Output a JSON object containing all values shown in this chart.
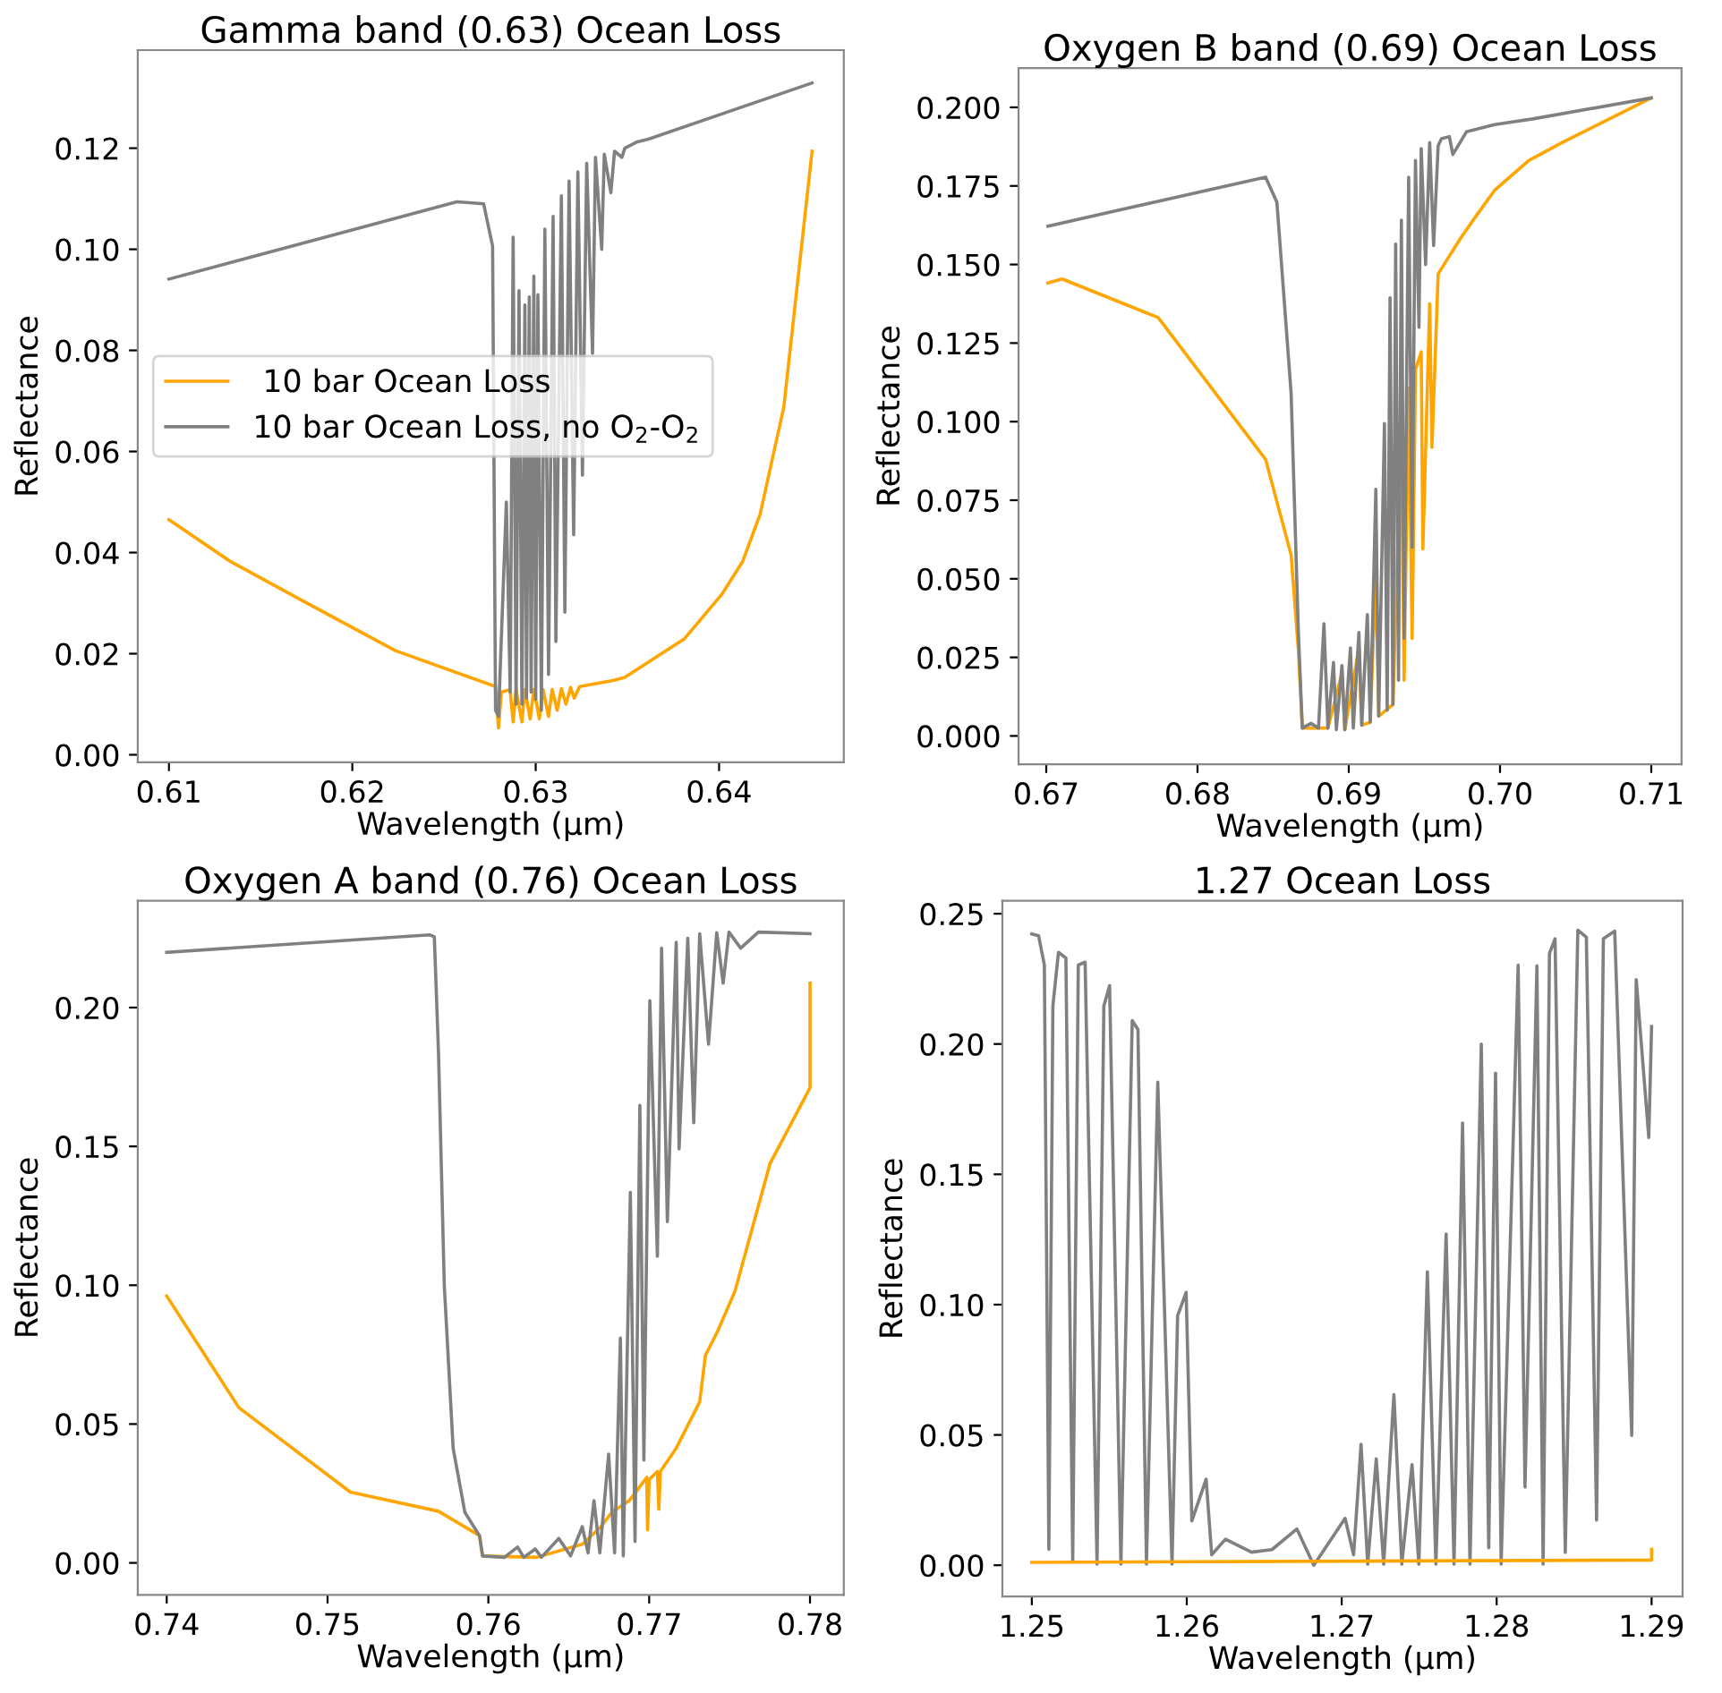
{
  "chart_data": [
    {
      "type": "line",
      "title": "Gamma band (0.63) Ocean Loss",
      "xlabel": "Wavelength (μm)",
      "ylabel": "Reflectance",
      "legend": "center left",
      "xlim": [
        0.6083,
        0.6468
      ],
      "ylim": [
        -0.0015,
        0.1394
      ],
      "xticks": [
        0.61,
        0.62,
        0.63,
        0.64
      ],
      "yticks": [
        {
          "value": 0,
          "label": "0.00"
        },
        {
          "value": 0.02,
          "label": "0.02"
        },
        {
          "value": 0.04,
          "label": "0.04"
        },
        {
          "value": 0.06,
          "label": "0.06"
        },
        {
          "value": 0.08,
          "label": "0.08"
        },
        {
          "value": 0.1,
          "label": "0.10"
        },
        {
          "value": 0.12,
          "label": "0.12"
        }
      ],
      "series": [
        {
          "name": " 10 bar Ocean Loss",
          "color": "#ffa500",
          "x": [
            0.61,
            0.61337,
            0.61722,
            0.62235,
            0.62781,
            0.62797,
            0.62813,
            0.6286,
            0.62877,
            0.62893,
            0.62925,
            0.62941,
            0.6297,
            0.6299,
            0.6302,
            0.6304,
            0.6307,
            0.6309,
            0.63117,
            0.6314,
            0.63165,
            0.6319,
            0.6321,
            0.6324,
            0.63422,
            0.63486,
            0.6381,
            0.64016,
            0.64128,
            0.64224,
            0.64353,
            0.64507
          ],
          "values": [
            0.0465,
            0.0382,
            0.0306,
            0.0206,
            0.0135,
            0.0053,
            0.0124,
            0.0129,
            0.0065,
            0.0129,
            0.0065,
            0.0129,
            0.0071,
            0.0129,
            0.0071,
            0.0129,
            0.0076,
            0.0129,
            0.0088,
            0.0131,
            0.01,
            0.0133,
            0.0112,
            0.0135,
            0.0147,
            0.0153,
            0.0229,
            0.0318,
            0.0382,
            0.0476,
            0.0688,
            0.1194
          ]
        },
        {
          "name": "10 bar Ocean Loss, no O$_{2}$-O$_{2}$",
          "color": "#808080",
          "x": [
            0.61,
            0.62572,
            0.62716,
            0.62765,
            0.62781,
            0.62797,
            0.6284,
            0.62861,
            0.62877,
            0.62893,
            0.62909,
            0.62925,
            0.62941,
            0.6295,
            0.62965,
            0.62975,
            0.6299,
            0.63,
            0.63012,
            0.63031,
            0.6305,
            0.6307,
            0.63095,
            0.6311,
            0.6314,
            0.63159,
            0.63182,
            0.63207,
            0.6323,
            0.63255,
            0.63278,
            0.6331,
            0.63326,
            0.6336,
            0.63374,
            0.6341,
            0.6343,
            0.6347,
            0.63486,
            0.6355,
            0.63615,
            0.64507
          ],
          "values": [
            0.0941,
            0.1094,
            0.109,
            0.1006,
            0.0088,
            0.0076,
            0.05,
            0.0124,
            0.1024,
            0.01,
            0.0918,
            0.01,
            0.089,
            0.0112,
            0.0906,
            0.0124,
            0.0947,
            0.011,
            0.091,
            0.0088,
            0.104,
            0.0159,
            0.1065,
            0.0224,
            0.1106,
            0.0282,
            0.1135,
            0.0435,
            0.1153,
            0.0553,
            0.117,
            0.0794,
            0.1182,
            0.1,
            0.1188,
            0.1112,
            0.1194,
            0.1182,
            0.12,
            0.1212,
            0.1218,
            0.1329
          ]
        }
      ]
    },
    {
      "type": "line",
      "title": "Oxygen B band (0.69) Ocean Loss",
      "xlabel": "Wavelength (μm)",
      "ylabel": "Reflectance",
      "xlim": [
        0.66817,
        0.712
      ],
      "ylim": [
        -0.009,
        0.2125
      ],
      "xticks": [
        0.67,
        0.68,
        0.69,
        {
          "value": 0.7,
          "label": "0.70"
        },
        0.71
      ],
      "yticks": [
        {
          "value": 0,
          "label": "0.000"
        },
        {
          "value": 0.025,
          "label": "0.025"
        },
        {
          "value": 0.05,
          "label": "0.050"
        },
        {
          "value": 0.075,
          "label": "0.075"
        },
        {
          "value": 0.1,
          "label": "0.100"
        },
        {
          "value": 0.125,
          "label": "0.125"
        },
        {
          "value": 0.15,
          "label": "0.150"
        },
        {
          "value": 0.175,
          "label": "0.175"
        },
        {
          "value": 0.2,
          "label": "0.200"
        }
      ],
      "series": [
        {
          "color": "#ffa500",
          "x": [
            0.67011,
            0.67105,
            0.6774,
            0.6845,
            0.68619,
            0.68667,
            0.68693,
            0.688,
            0.68862,
            0.68955,
            0.68974,
            0.69067,
            0.69086,
            0.69142,
            0.69179,
            0.69198,
            0.69292,
            0.69348,
            0.69366,
            0.69396,
            0.69419,
            0.69441,
            0.69479,
            0.6949,
            0.69535,
            0.6955,
            0.69591,
            0.69665,
            0.6974,
            0.6985,
            0.69964,
            0.7019,
            0.7041,
            0.71
          ],
          "values": [
            0.1441,
            0.1454,
            0.1331,
            0.088,
            0.0576,
            0.0272,
            0.0025,
            0.0025,
            0.0025,
            0.02,
            0.002,
            0.028,
            0.0034,
            0.0044,
            0.052,
            0.0063,
            0.01,
            0.0994,
            0.0177,
            0.1108,
            0.031,
            0.1165,
            0.1222,
            0.0595,
            0.1375,
            0.0918,
            0.147,
            0.1527,
            0.1584,
            0.166,
            0.1736,
            0.1831,
            0.1888,
            0.203
          ]
        },
        {
          "color": "#808080",
          "x": [
            0.67011,
            0.6845,
            0.68525,
            0.68619,
            0.68667,
            0.68693,
            0.6875,
            0.688,
            0.68836,
            0.68862,
            0.68899,
            0.68918,
            0.68955,
            0.68974,
            0.69011,
            0.6903,
            0.69067,
            0.69086,
            0.69123,
            0.69142,
            0.69179,
            0.69198,
            0.69236,
            0.69254,
            0.69273,
            0.69292,
            0.6931,
            0.69329,
            0.69348,
            0.69366,
            0.69396,
            0.69419,
            0.69441,
            0.69464,
            0.69479,
            0.69508,
            0.69535,
            0.69561,
            0.69591,
            0.69613,
            0.69665,
            0.69688,
            0.69778,
            0.69964,
            0.70226,
            0.71
          ],
          "values": [
            0.1622,
            0.1778,
            0.1698,
            0.1089,
            0.0329,
            0.0025,
            0.004,
            0.0025,
            0.0357,
            0.0025,
            0.0234,
            0.002,
            0.0224,
            0.002,
            0.028,
            0.0025,
            0.0329,
            0.0034,
            0.0386,
            0.0044,
            0.0785,
            0.0063,
            0.0994,
            0.0082,
            0.1394,
            0.01,
            0.1565,
            0.0177,
            0.1641,
            0.031,
            0.1778,
            0.06,
            0.1831,
            0.13,
            0.1869,
            0.15,
            0.1888,
            0.156,
            0.1878,
            0.19,
            0.1907,
            0.185,
            0.1922,
            0.1945,
            0.1964,
            0.203
          ]
        }
      ]
    },
    {
      "type": "line",
      "title": "Oxygen A band (0.76) Ocean Loss",
      "xlabel": "Wavelength (μm)",
      "ylabel": "Reflectance",
      "xlim": [
        0.7382,
        0.7821
      ],
      "ylim": [
        -0.0115,
        0.2385
      ],
      "xticks": [
        0.74,
        0.75,
        0.76,
        0.77,
        0.78
      ],
      "yticks": [
        {
          "value": 0,
          "label": "0.00"
        },
        {
          "value": 0.05,
          "label": "0.05"
        },
        {
          "value": 0.1,
          "label": "0.10"
        },
        {
          "value": 0.15,
          "label": "0.15"
        },
        {
          "value": 0.2,
          "label": "0.20"
        }
      ],
      "series": [
        {
          "color": "#ffa500",
          "x": [
            0.74,
            0.74449,
            0.75142,
            0.7569,
            0.75945,
            0.75964,
            0.763,
            0.76584,
            0.767,
            0.76767,
            0.76876,
            0.76985,
            0.7699,
            0.77,
            0.77051,
            0.7706,
            0.7707,
            0.77168,
            0.77314,
            0.7735,
            0.77423,
            0.77533,
            0.77752,
            0.78,
            0.78
          ],
          "values": [
            0.0961,
            0.0559,
            0.0255,
            0.0186,
            0.0098,
            0.0025,
            0.002,
            0.0067,
            0.013,
            0.0182,
            0.0224,
            0.0308,
            0.0119,
            0.03,
            0.0329,
            0.0193,
            0.033,
            0.0413,
            0.058,
            0.0748,
            0.0831,
            0.0978,
            0.1439,
            0.1711,
            0.2088
          ]
        },
        {
          "color": "#808080",
          "x": [
            0.74,
            0.75635,
            0.75664,
            0.7569,
            0.75726,
            0.75781,
            0.75854,
            0.75945,
            0.75964,
            0.761,
            0.76182,
            0.7622,
            0.76292,
            0.7633,
            0.76438,
            0.76511,
            0.76584,
            0.7662,
            0.76657,
            0.76693,
            0.76748,
            0.76785,
            0.76821,
            0.76839,
            0.76883,
            0.76912,
            0.76942,
            0.76967,
            0.77004,
            0.77051,
            0.77077,
            0.77113,
            0.77168,
            0.77186,
            0.7724,
            0.77277,
            0.77314,
            0.77369,
            0.7742,
            0.7746,
            0.77496,
            0.77569,
            0.77679,
            0.78
          ],
          "values": [
            0.2199,
            0.2262,
            0.2255,
            0.1837,
            0.0999,
            0.0413,
            0.0182,
            0.0098,
            0.0025,
            0.002,
            0.0057,
            0.002,
            0.005,
            0.002,
            0.0088,
            0.0025,
            0.013,
            0.0036,
            0.0224,
            0.0036,
            0.0392,
            0.0036,
            0.081,
            0.0025,
            0.1334,
            0.0077,
            0.1648,
            0.037,
            0.2025,
            0.1104,
            0.2214,
            0.1229,
            0.2235,
            0.1491,
            0.225,
            0.1585,
            0.2266,
            0.1868,
            0.227,
            0.2088,
            0.2272,
            0.2214,
            0.2272,
            0.2266
          ]
        }
      ]
    },
    {
      "type": "line",
      "title": "1.27 Ocean Loss",
      "xlabel": "Wavelength (μm)",
      "ylabel": "Reflectance",
      "xlim": [
        1.2481,
        1.292
      ],
      "ylim": [
        -0.012,
        0.255
      ],
      "xticks": [
        1.25,
        1.26,
        1.27,
        1.28,
        1.29
      ],
      "yticks": [
        {
          "value": 0,
          "label": "0.00"
        },
        {
          "value": 0.05,
          "label": "0.05"
        },
        {
          "value": 0.1,
          "label": "0.10"
        },
        {
          "value": 0.15,
          "label": "0.15"
        },
        {
          "value": 0.2,
          "label": "0.20"
        },
        {
          "value": 0.25,
          "label": "0.25"
        }
      ],
      "series": [
        {
          "color": "#808080",
          "x": [
            1.25,
            1.25044,
            1.25081,
            1.2511,
            1.25136,
            1.25172,
            1.2522,
            1.25264,
            1.253,
            1.25344,
            1.25421,
            1.25465,
            1.25502,
            1.25575,
            1.25648,
            1.25685,
            1.2574,
            1.25813,
            1.25905,
            1.25941,
            1.25996,
            1.26033,
            1.26125,
            1.26161,
            1.2625,
            1.26418,
            1.2655,
            1.26711,
            1.2682,
            1.27022,
            1.27077,
            1.27125,
            1.27168,
            1.27223,
            1.27271,
            1.27337,
            1.27388,
            1.27454,
            1.27498,
            1.27553,
            1.27608,
            1.27674,
            1.27725,
            1.2778,
            1.27828,
            1.27901,
            1.27949,
            1.27993,
            1.28029,
            1.28139,
            1.28183,
            1.2826,
            1.283,
            1.28341,
            1.28377,
            1.28443,
            1.28524,
            1.28579,
            1.28645,
            1.28689,
            1.28762,
            1.28872,
            1.28901,
            1.28982,
            1.29
          ],
          "values": [
            0.2422,
            0.2415,
            0.2303,
            0.0061,
            0.2146,
            0.2352,
            0.233,
            0.0016,
            0.2303,
            0.2314,
            0.0004,
            0.2146,
            0.2224,
            0.0004,
            0.209,
            0.2056,
            0.0004,
            0.1854,
            0.0004,
            0.0957,
            0.1047,
            0.017,
            0.033,
            0.004,
            0.01,
            0.005,
            0.006,
            0.0139,
            0.0,
            0.018,
            0.004,
            0.0464,
            0.0004,
            0.0408,
            0.0004,
            0.0655,
            0.0004,
            0.0386,
            0.0004,
            0.1126,
            0.0004,
            0.1271,
            0.0004,
            0.1697,
            0.0004,
            0.2,
            0.0067,
            0.1888,
            0.0004,
            0.2303,
            0.03,
            0.23,
            0.0004,
            0.2348,
            0.2404,
            0.0049,
            0.2437,
            0.241,
            0.0173,
            0.2404,
            0.2433,
            0.0498,
            0.2247,
            0.1641,
            0.2067
          ]
        },
        {
          "color": "#ffa500",
          "x": [
            1.25,
            1.29,
            1.29
          ],
          "values": [
            0.0011,
            0.002,
            0.0061
          ]
        }
      ]
    }
  ]
}
